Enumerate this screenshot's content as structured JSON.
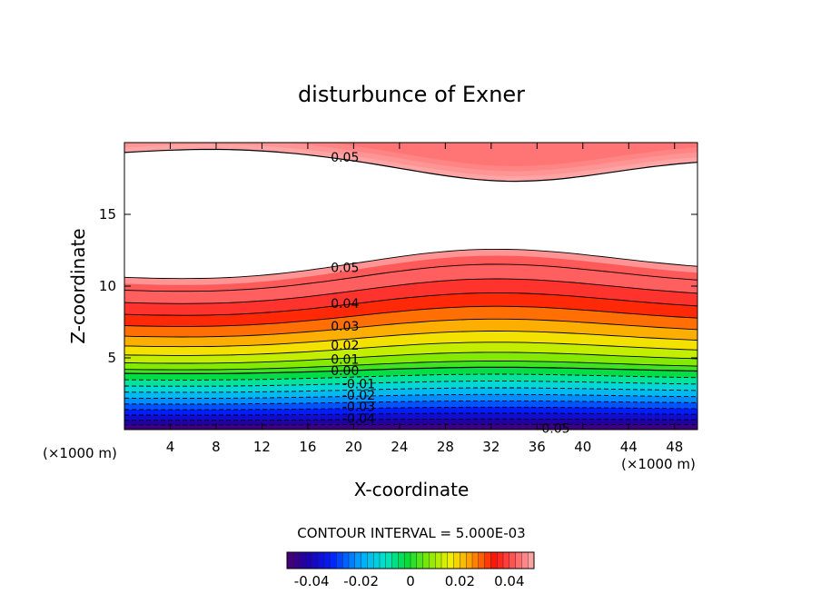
{
  "chart_data": {
    "type": "contour",
    "title": "disturbunce of Exner",
    "xlabel": "X-coordinate",
    "ylabel": "Z-coordinate",
    "x_unit": "(×1000 m)",
    "x_unit_right": "(×1000 m)",
    "xlim": [
      0,
      50
    ],
    "ylim": [
      0,
      20
    ],
    "xticks": [
      4,
      8,
      12,
      16,
      20,
      24,
      28,
      32,
      36,
      40,
      44,
      48
    ],
    "yticks": [
      5,
      10,
      15
    ],
    "contour_interval_text": "CONTOUR INTERVAL = 5.000E-03",
    "contour_interval": 0.005,
    "value_range": [
      -0.05,
      0.05
    ],
    "levels": [
      -0.05,
      -0.045,
      -0.04,
      -0.035,
      -0.03,
      -0.025,
      -0.02,
      -0.015,
      -0.01,
      -0.005,
      0.0,
      0.005,
      0.01,
      0.015,
      0.02,
      0.025,
      0.03,
      0.035,
      0.04,
      0.045,
      0.05
    ],
    "contour_labels": [
      {
        "text": "0.05",
        "x": 18,
        "y": 19.0
      },
      {
        "text": "0.05",
        "x": 18,
        "y": 11.3
      },
      {
        "text": "0.04",
        "x": 18,
        "y": 8.8
      },
      {
        "text": "0.03",
        "x": 18,
        "y": 7.2
      },
      {
        "text": "0.02",
        "x": 18,
        "y": 5.9
      },
      {
        "text": "0.01",
        "x": 18,
        "y": 4.9
      },
      {
        "text": "0.00",
        "x": 18,
        "y": 4.1
      },
      {
        "text": "-0.01",
        "x": 19,
        "y": 3.2
      },
      {
        "text": "-0.02",
        "x": 19,
        "y": 2.4
      },
      {
        "text": "-0.03",
        "x": 19,
        "y": 1.6
      },
      {
        "text": "-0.04",
        "x": 19,
        "y": 0.8
      },
      {
        "text": "-0.05",
        "x": 36,
        "y": 0.1
      }
    ],
    "grid": false,
    "colorbar": {
      "ticks": [
        "-0.04",
        "-0.02",
        "0",
        "0.02",
        "0.04"
      ],
      "tick_values": [
        -0.04,
        -0.02,
        0,
        0.02,
        0.04
      ],
      "range": [
        -0.05,
        0.05
      ]
    }
  }
}
